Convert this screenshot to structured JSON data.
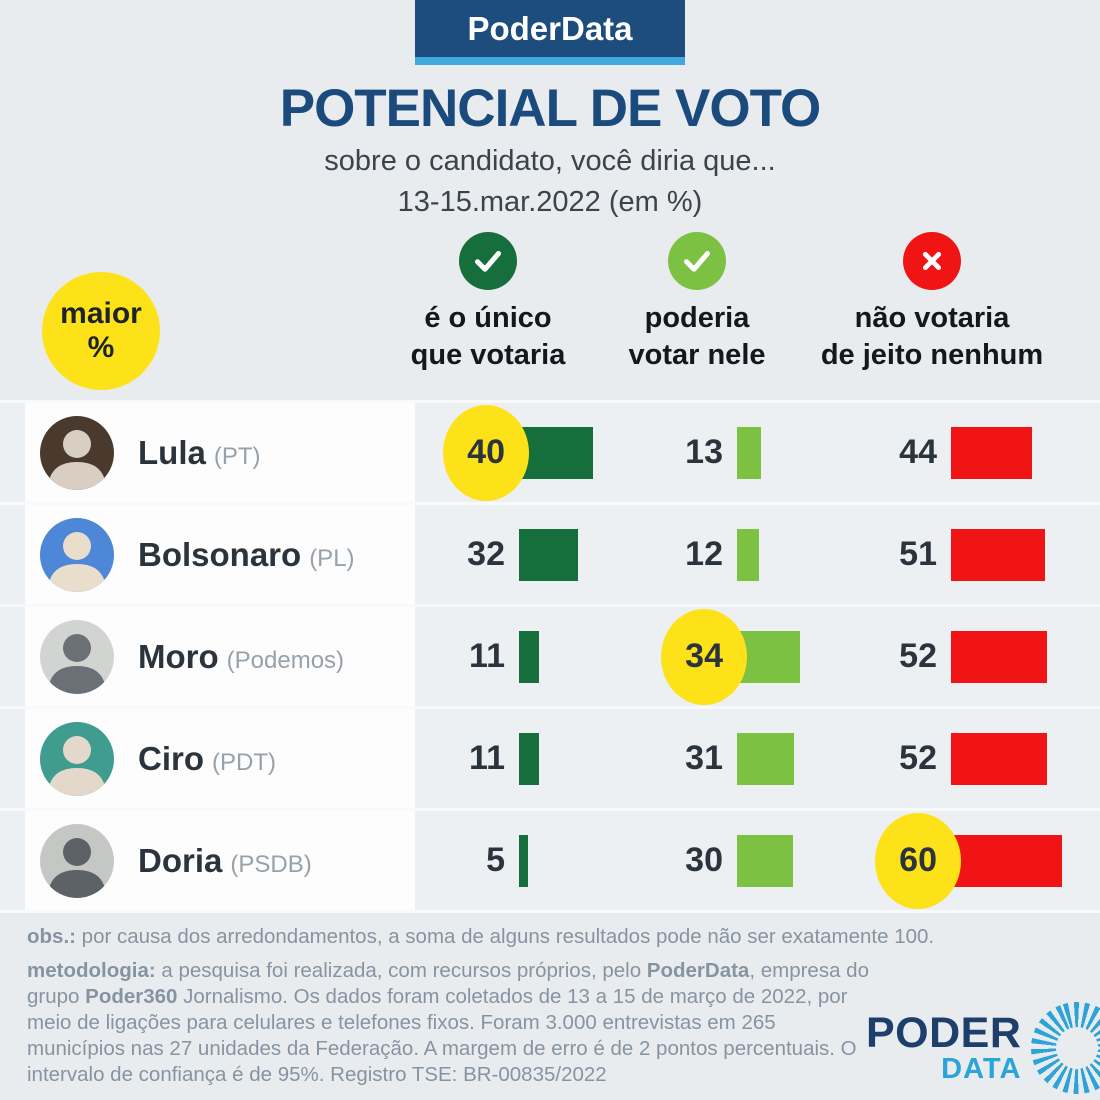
{
  "banner": {
    "label": "PoderData"
  },
  "title": "POTENCIAL DE VOTO",
  "subtitle1": "sobre o candidato, você diria que...",
  "subtitle2": "13-15.mar.2022 (em %)",
  "legend": {
    "badge_line1": "maior",
    "badge_line2": "%",
    "columns": [
      {
        "icon": "check-dark-green-icon",
        "color": "#156e3b",
        "line1": "é o único",
        "line2": "que votaria"
      },
      {
        "icon": "check-light-green-icon",
        "color": "#7cc142",
        "line1": "poderia",
        "line2": "votar nele"
      },
      {
        "icon": "cross-red-icon",
        "color": "#f11414",
        "line1": "não votaria",
        "line2": "de jeito nenhum"
      }
    ]
  },
  "colors": {
    "banner_navy": "#1d4d7c",
    "banner_strip_blue": "#41a8de",
    "title_navy": "#1b4b7d",
    "highlight_yellow": "#fde21a",
    "dark_green": "#156e3b",
    "light_green": "#7cc142",
    "red": "#f11414",
    "footer_gray": "#8694a2",
    "page_background": "#e9ecef"
  },
  "table": {
    "rows": [
      {
        "name": "Lula",
        "party": "(PT)",
        "avatar_bg": "#4a3a2e",
        "avatar_fg": "#d9cec2",
        "values": [
          {
            "v": 40,
            "hl": true
          },
          {
            "v": 13,
            "hl": false
          },
          {
            "v": 44,
            "hl": false
          }
        ]
      },
      {
        "name": "Bolsonaro",
        "party": "(PL)",
        "avatar_bg": "#4e86d8",
        "avatar_fg": "#e9ddcb",
        "values": [
          {
            "v": 32,
            "hl": false
          },
          {
            "v": 12,
            "hl": false
          },
          {
            "v": 51,
            "hl": false
          }
        ]
      },
      {
        "name": "Moro",
        "party": "(Podemos)",
        "avatar_bg": "#d2d4d2",
        "avatar_fg": "#6b7076",
        "values": [
          {
            "v": 11,
            "hl": false
          },
          {
            "v": 34,
            "hl": true
          },
          {
            "v": 52,
            "hl": false
          }
        ]
      },
      {
        "name": "Ciro",
        "party": "(PDT)",
        "avatar_bg": "#3f9c8e",
        "avatar_fg": "#e3d8ca",
        "values": [
          {
            "v": 11,
            "hl": false
          },
          {
            "v": 31,
            "hl": false
          },
          {
            "v": 52,
            "hl": false
          }
        ]
      },
      {
        "name": "Doria",
        "party": "(PSDB)",
        "avatar_bg": "#c4c7c3",
        "avatar_fg": "#5d6267",
        "values": [
          {
            "v": 5,
            "hl": false
          },
          {
            "v": 30,
            "hl": false
          },
          {
            "v": 60,
            "hl": true
          }
        ]
      }
    ]
  },
  "footer": {
    "obs_label": "obs.:",
    "obs_text": " por causa dos arredondamentos, a soma de alguns resultados pode não ser exatamente 100.",
    "met_label": "metodologia:",
    "met_t1": " a pesquisa foi realizada, com recursos próprios, pelo ",
    "met_b1": "PoderData",
    "met_t2": ", empresa do grupo ",
    "met_b2": "Poder360",
    "met_t3": " Jornalismo. Os dados foram coletados de 13 a 15 de março de 2022, por meio de ligações para celulares e telefones fixos. Foram 3.000 entrevistas em 265 municípios nas 27 unidades da Federação. A margem de erro é de 2 pontos percentuais. O intervalo de confiança é de 95%. Registro TSE: BR-00835/2022"
  },
  "logo": {
    "top": "PODER",
    "bottom": "DATA"
  },
  "chart_data": {
    "type": "bar",
    "title": "POTENCIAL DE VOTO",
    "subtitle": "sobre o candidato, você diria que... 13-15.mar.2022 (em %)",
    "categories": [
      "Lula (PT)",
      "Bolsonaro (PL)",
      "Moro (Podemos)",
      "Ciro (PDT)",
      "Doria (PSDB)"
    ],
    "series": [
      {
        "name": "é o único que votaria",
        "color": "#156e3b",
        "values": [
          40,
          32,
          11,
          11,
          5
        ]
      },
      {
        "name": "poderia votar nele",
        "color": "#7cc142",
        "values": [
          13,
          12,
          34,
          31,
          30
        ]
      },
      {
        "name": "não votaria de jeito nenhum",
        "color": "#f11414",
        "values": [
          44,
          51,
          52,
          52,
          60
        ]
      }
    ],
    "highlighted_max_per_row": [
      {
        "category": "Lula (PT)",
        "series": "é o único que votaria",
        "value": 40
      },
      {
        "category": "Moro (Podemos)",
        "series": "poderia votar nele",
        "value": 34
      },
      {
        "category": "Doria (PSDB)",
        "series": "não votaria de jeito nenhum",
        "value": 60
      }
    ],
    "unit": "%",
    "xlabel": "",
    "ylabel": "",
    "legend_position": "top",
    "grid": false
  }
}
